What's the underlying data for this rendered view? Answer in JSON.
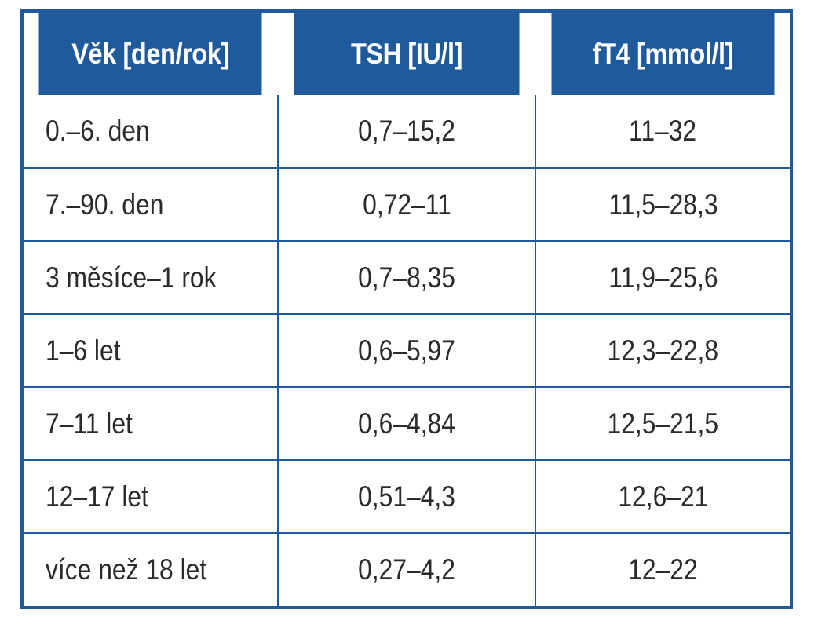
{
  "table": {
    "headers": [
      "Věk [den/rok]",
      "TSH [IU/l]",
      "fT4 [mmol/l]"
    ],
    "rows": [
      [
        "0.–6. den",
        "0,7–15,2",
        "11–32"
      ],
      [
        "7.–90. den",
        "0,72–11",
        "11,5–28,3"
      ],
      [
        "3 měsíce–1 rok",
        "0,7–8,35",
        "11,9–25,6"
      ],
      [
        "1–6 let",
        "0,6–5,97",
        "12,3–22,8"
      ],
      [
        "7–11 let",
        "0,6–4,84",
        "12,5–21,5"
      ],
      [
        "12–17 let",
        "0,51–4,3",
        "12,6–21"
      ],
      [
        "více než 18 let",
        "0,27–4,2",
        "12–22"
      ]
    ]
  },
  "colors": {
    "accent": "#1e5a9c",
    "text": "#2a2a2a",
    "header_text": "#ffffff"
  }
}
